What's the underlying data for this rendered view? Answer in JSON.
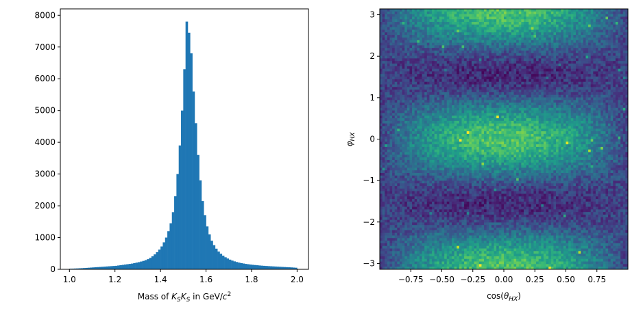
{
  "chart_data": [
    {
      "type": "bar",
      "subtype": "histogram",
      "xlabel": {
        "prefix": "Mass of ",
        "k1": "K",
        "s1": "S",
        "k2": "K",
        "s2": "S",
        "suffix": " in GeV/",
        "c": "c",
        "exp": "2"
      },
      "ylabel": "",
      "xlim": [
        0.96,
        2.05
      ],
      "ylim": [
        0,
        8200
      ],
      "x_ticks": [
        1.0,
        1.2,
        1.4,
        1.6,
        1.8,
        2.0
      ],
      "x_tick_labels": [
        "1.0",
        "1.2",
        "1.4",
        "1.6",
        "1.8",
        "2.0"
      ],
      "y_ticks": [
        0,
        1000,
        2000,
        3000,
        4000,
        5000,
        6000,
        7000,
        8000
      ],
      "y_tick_labels": [
        "0",
        "1000",
        "2000",
        "3000",
        "4000",
        "5000",
        "6000",
        "7000",
        "8000"
      ],
      "bin_start": 1.0,
      "bin_width": 0.01,
      "color": "#1f77b4",
      "counts": [
        20,
        22,
        25,
        28,
        32,
        35,
        40,
        45,
        50,
        55,
        60,
        65,
        70,
        75,
        80,
        85,
        90,
        95,
        100,
        105,
        110,
        120,
        130,
        140,
        150,
        160,
        170,
        180,
        195,
        210,
        225,
        245,
        265,
        290,
        320,
        360,
        410,
        470,
        540,
        620,
        720,
        850,
        1000,
        1200,
        1450,
        1800,
        2300,
        3000,
        3900,
        5000,
        6300,
        7800,
        7450,
        6800,
        5600,
        4600,
        3600,
        2800,
        2150,
        1700,
        1350,
        1100,
        900,
        760,
        650,
        560,
        490,
        430,
        380,
        340,
        305,
        275,
        250,
        230,
        210,
        195,
        182,
        170,
        160,
        150,
        142,
        135,
        128,
        121,
        115,
        110,
        105,
        100,
        96,
        92,
        88,
        84,
        80,
        76,
        72,
        68,
        64,
        60,
        55,
        50
      ]
    },
    {
      "type": "heatmap",
      "xlabel": {
        "pre": "cos(",
        "theta": "θ",
        "sub": "HX",
        "post": ")"
      },
      "ylabel": {
        "phi": "φ",
        "sub": "HX"
      },
      "xlim": [
        -1.0,
        1.0
      ],
      "ylim": [
        -3.1416,
        3.1416
      ],
      "x_ticks": [
        -0.75,
        -0.5,
        -0.25,
        0.0,
        0.25,
        0.5,
        0.75
      ],
      "x_tick_labels": [
        "−0.75",
        "−0.50",
        "−0.25",
        "0.00",
        "0.25",
        "0.50",
        "0.75"
      ],
      "y_ticks": [
        -3,
        -2,
        -1,
        0,
        1,
        2,
        3
      ],
      "y_tick_labels": [
        "−3",
        "−2",
        "−1",
        "0",
        "1",
        "2",
        "3"
      ],
      "colormap": "viridis",
      "bins_x": 100,
      "bins_y": 100
    }
  ]
}
